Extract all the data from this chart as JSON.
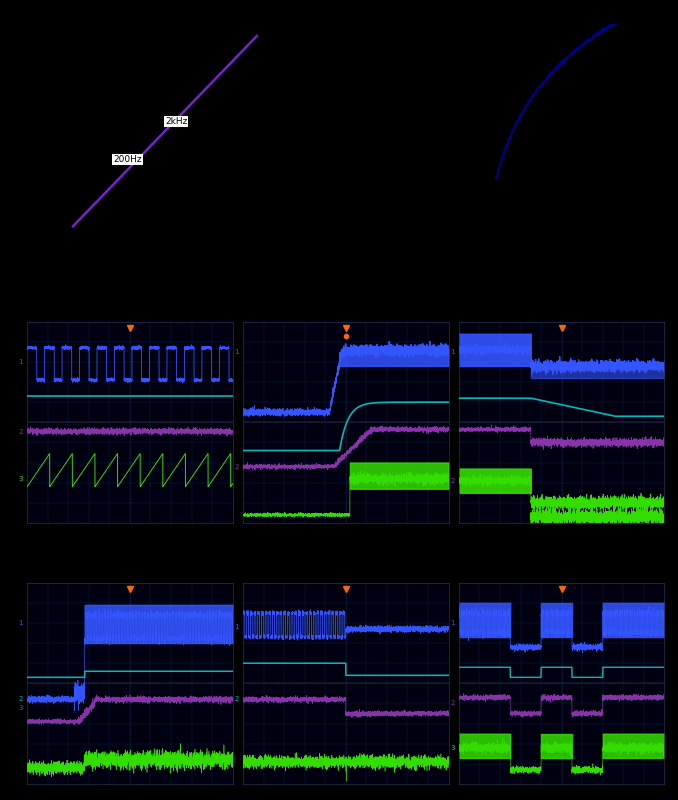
{
  "bg_color": "#000000",
  "scope_bg": "#000010",
  "scope_grid_color": "#003366",
  "purple_line_color": "#7722cc",
  "blue_dark_color": "#00008B",
  "blue_color": "#3355ff",
  "cyan_color": "#00bbbb",
  "purple_color": "#8833aa",
  "green_color": "#33dd00",
  "orange_marker": "#ff6600",
  "top_labels": [
    "200Hz",
    "2kHz"
  ]
}
